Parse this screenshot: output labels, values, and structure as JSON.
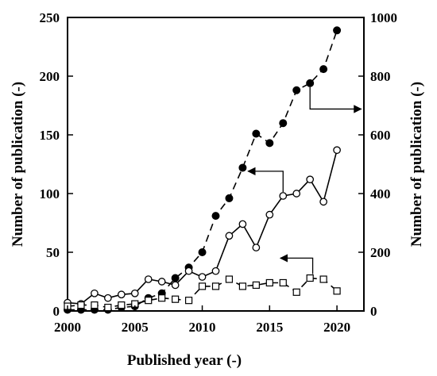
{
  "chart_data": {
    "type": "line",
    "title": "",
    "xlabel": "Published year (-)",
    "ylabel_left": "Number of publication (-)",
    "ylabel_right": "Number of publication (-)",
    "xlim": [
      2000,
      2022
    ],
    "ylim_left": [
      0,
      250
    ],
    "ylim_right": [
      0,
      1000
    ],
    "x_ticks": [
      2000,
      2005,
      2010,
      2015,
      2020
    ],
    "y_left_ticks": [
      0,
      50,
      100,
      150,
      200,
      250
    ],
    "y_right_ticks": [
      0,
      200,
      400,
      600,
      800,
      1000
    ],
    "grid": false,
    "legend": "none",
    "x": [
      2000,
      2001,
      2002,
      2003,
      2004,
      2005,
      2006,
      2007,
      2008,
      2009,
      2010,
      2011,
      2012,
      2013,
      2014,
      2015,
      2016,
      2017,
      2018,
      2019,
      2020
    ],
    "series": [
      {
        "axis": "right",
        "marker": "filled-circle",
        "line": "dashed",
        "values": [
          4,
          4,
          4,
          4,
          12,
          16,
          44,
          60,
          112,
          148,
          200,
          324,
          384,
          488,
          604,
          572,
          640,
          752,
          776,
          824,
          956
        ]
      },
      {
        "axis": "left",
        "marker": "open-circle",
        "line": "solid",
        "values": [
          7,
          6,
          15,
          11,
          14,
          15,
          27,
          25,
          22,
          34,
          29,
          34,
          64,
          74,
          54,
          82,
          98,
          100,
          112,
          93,
          137
        ]
      },
      {
        "axis": "right",
        "marker": "open-square",
        "line": "dashed",
        "values": [
          16,
          20,
          20,
          12,
          20,
          24,
          36,
          44,
          40,
          36,
          84,
          84,
          108,
          84,
          88,
          96,
          96,
          64,
          112,
          108,
          68
        ]
      }
    ],
    "annotations": [
      {
        "type": "arrow",
        "points_to": "right-axis",
        "series": 0,
        "from": [
          2018.0,
          190
        ],
        "to": [
          2021.8,
          172
        ]
      },
      {
        "type": "arrow",
        "points_to": "left-axis",
        "series": 1,
        "from": [
          2016.0,
          119
        ],
        "to": [
          2013.4,
          119
        ]
      },
      {
        "type": "arrow",
        "points_to": "left-axis",
        "series": 2,
        "from": [
          2018.2,
          30
        ],
        "to": [
          2015.8,
          45
        ]
      }
    ],
    "colors": {
      "series": "#000000",
      "axes": "#000000",
      "background": "#ffffff"
    }
  }
}
